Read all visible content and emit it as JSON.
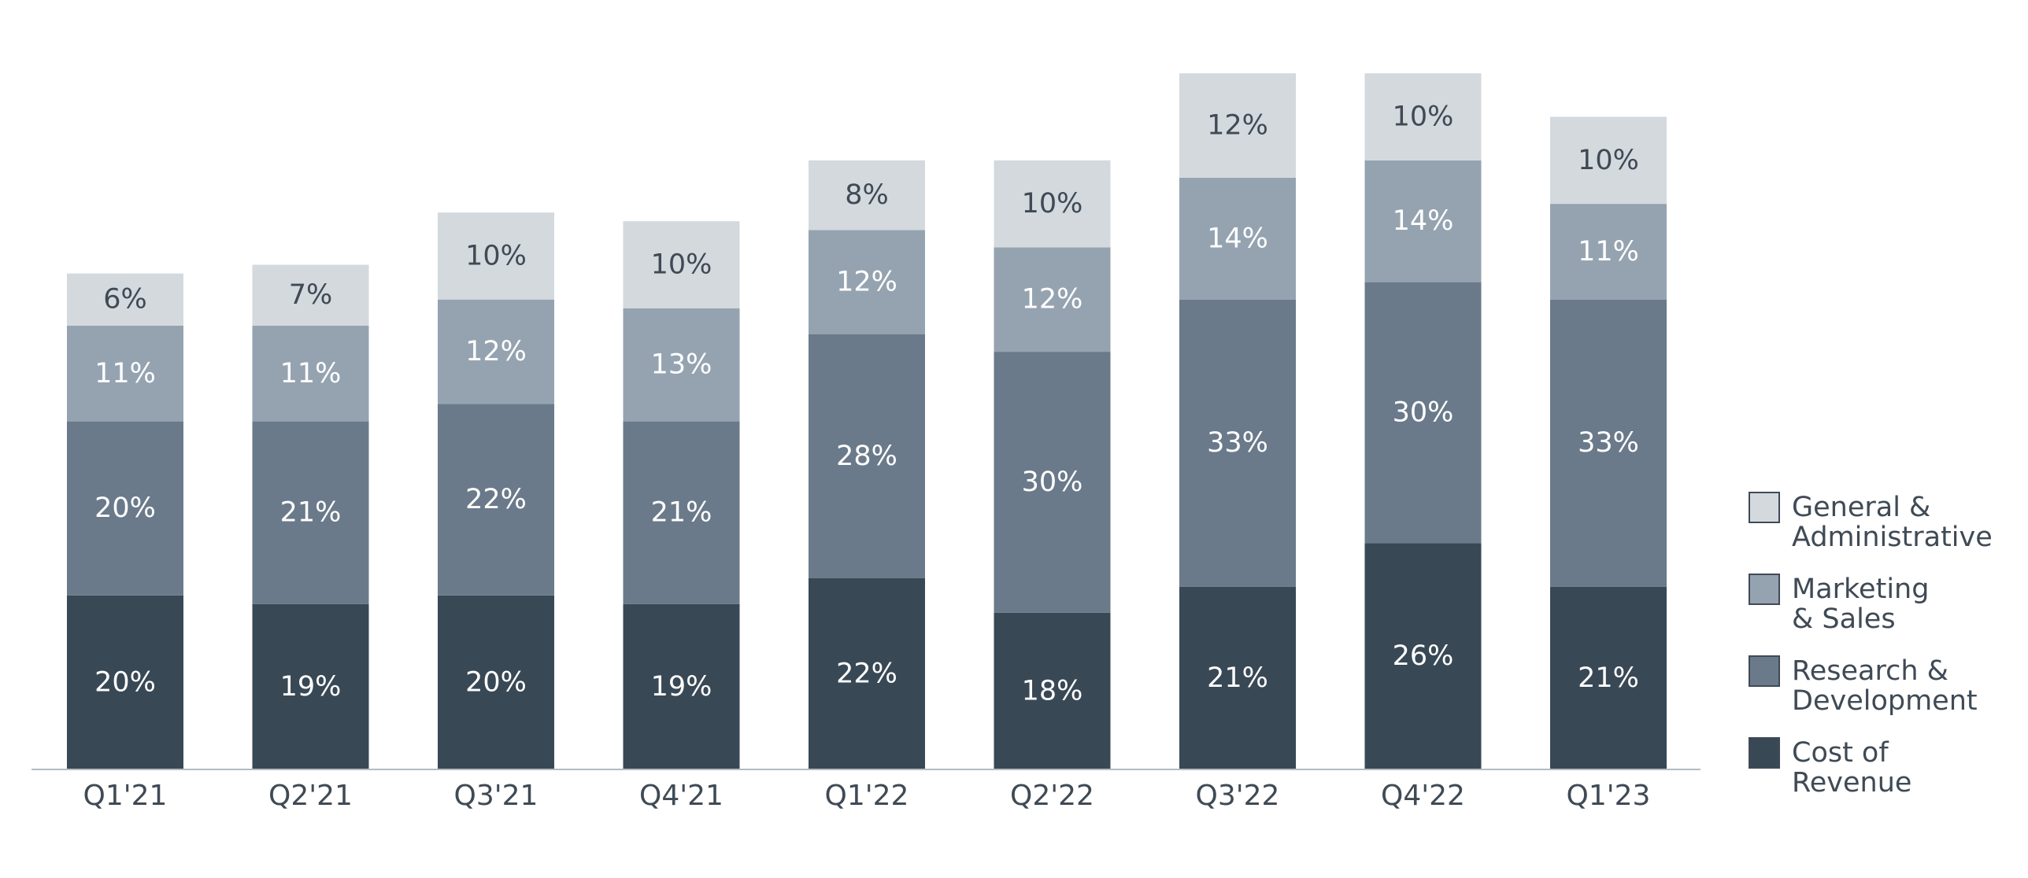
{
  "chart_data": {
    "type": "bar",
    "stacked": true,
    "categories": [
      "Q1'21",
      "Q2'21",
      "Q3'21",
      "Q4'21",
      "Q1'22",
      "Q2'22",
      "Q3'22",
      "Q4'22",
      "Q1'23"
    ],
    "series": [
      {
        "name": "Cost of Revenue",
        "legend_lines": [
          "Cost of",
          "Revenue"
        ],
        "color": "#394855",
        "label_color": "#ffffff",
        "values": [
          20,
          19,
          20,
          19,
          22,
          18,
          21,
          26,
          21
        ]
      },
      {
        "name": "Research & Development",
        "legend_lines": [
          "Research &",
          "Development"
        ],
        "color": "#6a7a8a",
        "label_color": "#ffffff",
        "values": [
          20,
          21,
          22,
          21,
          28,
          30,
          33,
          30,
          33
        ]
      },
      {
        "name": "Marketing & Sales",
        "legend_lines": [
          "Marketing",
          "& Sales"
        ],
        "color": "#95a3b1",
        "label_color": "#ffffff",
        "values": [
          11,
          11,
          12,
          13,
          12,
          12,
          14,
          14,
          11
        ]
      },
      {
        "name": "General & Administrative",
        "legend_lines": [
          "General &",
          "Administrative"
        ],
        "color": "#d4d9de",
        "label_color": "#3f4a55",
        "values": [
          6,
          7,
          10,
          10,
          8,
          10,
          12,
          10,
          10
        ]
      }
    ],
    "value_format": "{v}%",
    "title": "",
    "xlabel": "",
    "ylabel": "",
    "ylim": [
      0,
      83
    ],
    "grid": false,
    "legend_position": "right"
  }
}
